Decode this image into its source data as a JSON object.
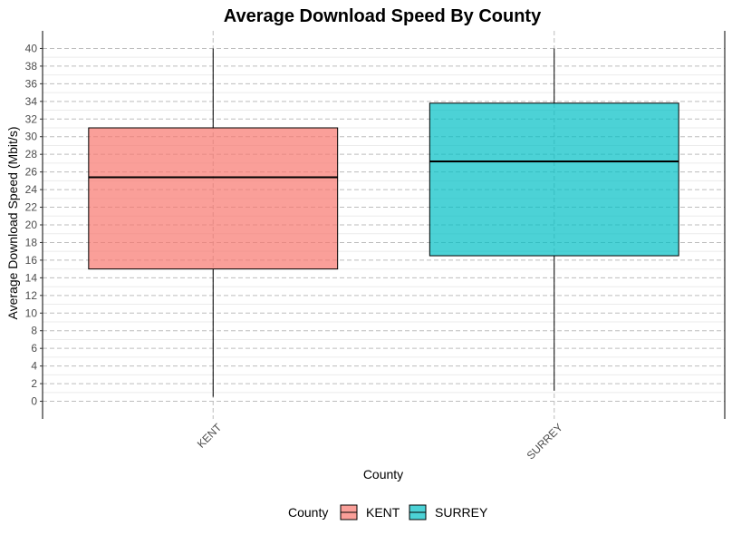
{
  "chart_data": {
    "type": "boxplot",
    "title": "Average Download Speed By County",
    "xlabel": "County",
    "ylabel": "Average Download Speed (Mbit/s)",
    "ylim": [
      -2,
      42
    ],
    "yticks": [
      0,
      2,
      4,
      6,
      8,
      10,
      12,
      14,
      16,
      18,
      20,
      22,
      24,
      26,
      28,
      30,
      32,
      34,
      36,
      38,
      40
    ],
    "grid": true,
    "categories": [
      "KENT",
      "SURREY"
    ],
    "boxes": [
      {
        "category": "KENT",
        "min": 0.5,
        "q1": 15.0,
        "median": 25.4,
        "q3": 31.0,
        "max": 40.0,
        "color": "#F8766D"
      },
      {
        "category": "SURREY",
        "min": 1.2,
        "q1": 16.5,
        "median": 27.2,
        "q3": 33.8,
        "max": 40.0,
        "color": "#00BFC4"
      }
    ],
    "legend": {
      "title": "County",
      "position": "bottom",
      "items": [
        {
          "label": "KENT",
          "color": "#F8766D"
        },
        {
          "label": "SURREY",
          "color": "#00BFC4"
        }
      ]
    }
  }
}
